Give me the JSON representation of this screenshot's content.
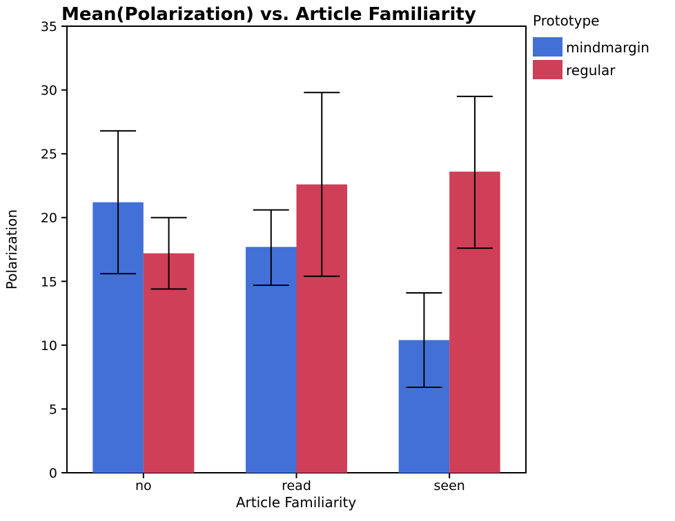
{
  "chart_data": {
    "type": "bar",
    "title": "Mean(Polarization) vs. Article Familiarity",
    "xlabel": "Article Familiarity",
    "ylabel": "Polarization",
    "categories": [
      "no",
      "read",
      "seen"
    ],
    "ylim": [
      0,
      35
    ],
    "yticks": [
      0,
      5,
      10,
      15,
      20,
      25,
      30,
      35
    ],
    "legend_title": "Prototype",
    "legend_position": "right",
    "grid": false,
    "series": [
      {
        "name": "mindmargin",
        "color": "#4270d6",
        "values": [
          21.2,
          17.7,
          10.4
        ],
        "error_low": [
          15.6,
          14.7,
          6.7
        ],
        "error_high": [
          26.8,
          20.6,
          14.1
        ]
      },
      {
        "name": "regular",
        "color": "#cf3f58",
        "values": [
          17.2,
          22.6,
          23.6
        ],
        "error_low": [
          14.4,
          15.4,
          17.6
        ],
        "error_high": [
          20.0,
          29.8,
          29.5
        ]
      }
    ]
  }
}
